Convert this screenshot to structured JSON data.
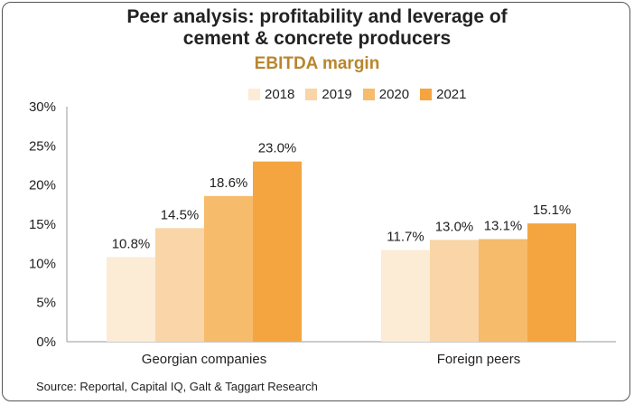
{
  "title_line1": "Peer analysis: profitability and leverage of",
  "title_line2": "cement & concrete producers",
  "subtitle": "EBITDA margin",
  "source": "Source: Reportal, Capital IQ, Galt & Taggart Research",
  "chart_data": {
    "type": "bar",
    "title": "EBITDA margin",
    "categories": [
      "Georgian companies",
      "Foreign peers"
    ],
    "series": [
      {
        "name": "2018",
        "values": [
          10.8,
          11.7
        ],
        "color": "#fcebd5"
      },
      {
        "name": "2019",
        "values": [
          14.5,
          13.0
        ],
        "color": "#f9d5a7"
      },
      {
        "name": "2020",
        "values": [
          18.6,
          13.1
        ],
        "color": "#f7bb6c"
      },
      {
        "name": "2021",
        "values": [
          23.0,
          15.1
        ],
        "color": "#f5a540"
      }
    ],
    "ylim": [
      0,
      30
    ],
    "yticks": [
      "0%",
      "5%",
      "10%",
      "15%",
      "20%",
      "25%",
      "30%"
    ],
    "data_labels": [
      [
        "10.8%",
        "11.7%"
      ],
      [
        "14.5%",
        "13.0%"
      ],
      [
        "18.6%",
        "13.1%"
      ],
      [
        "23.0%",
        "15.1%"
      ]
    ],
    "legend_position": "top",
    "grid": false
  }
}
